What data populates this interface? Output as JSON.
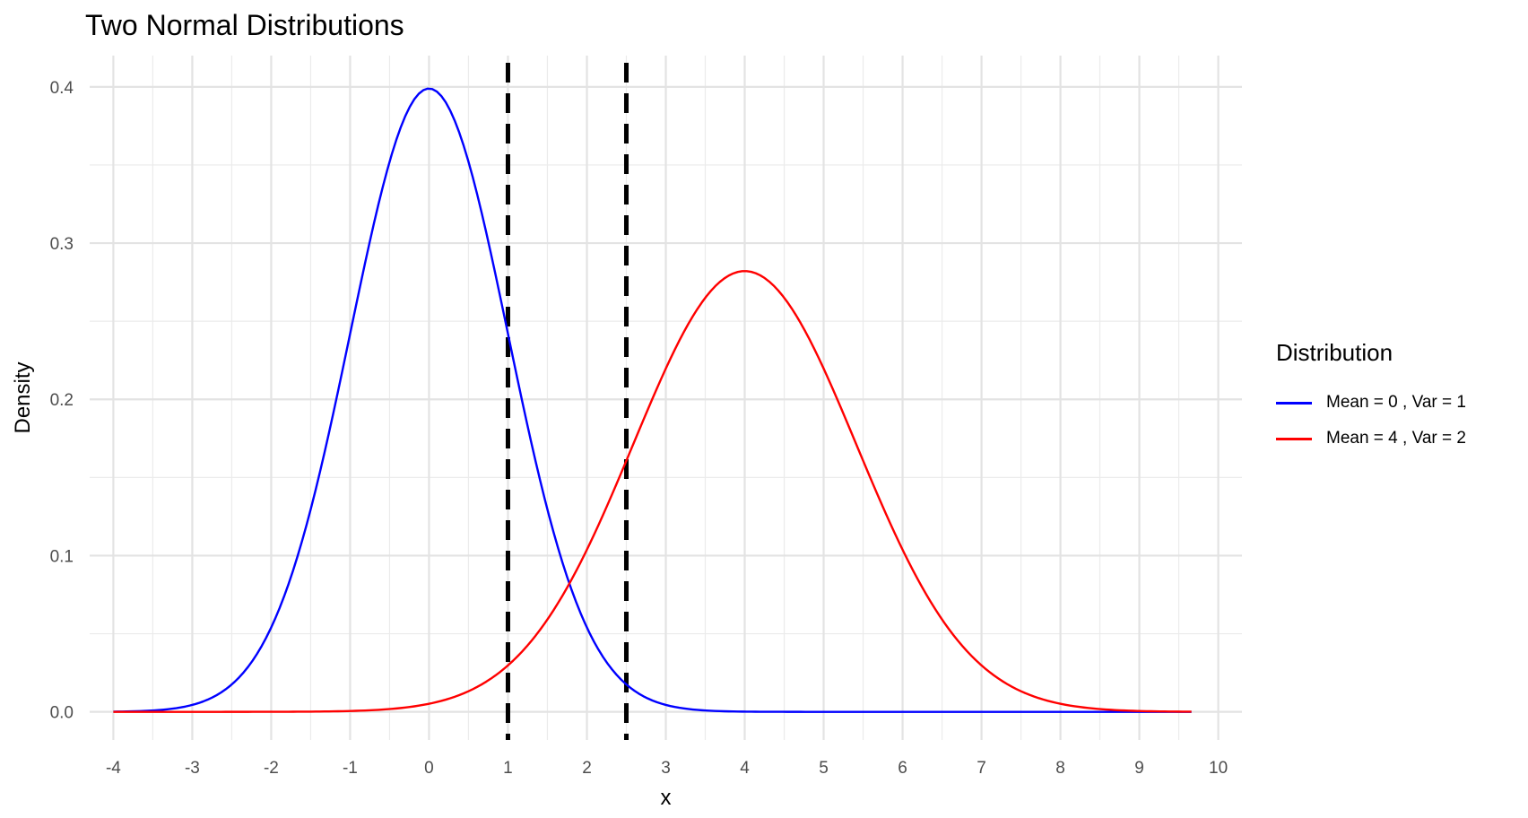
{
  "chart_data": {
    "type": "line",
    "title": "Two Normal Distributions",
    "xlabel": "x",
    "ylabel": "Density",
    "xlim": [
      -4.3,
      10.3
    ],
    "ylim": [
      -0.018,
      0.42
    ],
    "x_ticks": [
      -4,
      -3,
      -2,
      -1,
      0,
      1,
      2,
      3,
      4,
      5,
      6,
      7,
      8,
      9,
      10
    ],
    "x_tick_labels": [
      "-4",
      "-3",
      "-2",
      "-1",
      "0",
      "1",
      "2",
      "3",
      "4",
      "5",
      "6",
      "7",
      "8",
      "9",
      "10"
    ],
    "y_ticks": [
      0.0,
      0.1,
      0.2,
      0.3,
      0.4
    ],
    "y_tick_labels": [
      "0.0",
      "0.1",
      "0.2",
      "0.3",
      "0.4"
    ],
    "grid": true,
    "legend": {
      "title": "Distribution",
      "placement": "right"
    },
    "series": [
      {
        "name": "Mean = 0 , Var = 1",
        "color": "#0000ff",
        "mean": 0,
        "variance": 1,
        "x_range": [
          -4,
          9.66
        ],
        "points": [
          [
            -4,
            0.0001
          ],
          [
            -3,
            0.0044
          ],
          [
            -2.5,
            0.0175
          ],
          [
            -2,
            0.054
          ],
          [
            -1.5,
            0.1295
          ],
          [
            -1,
            0.242
          ],
          [
            -0.5,
            0.3521
          ],
          [
            0,
            0.3989
          ],
          [
            0.5,
            0.3521
          ],
          [
            1,
            0.242
          ],
          [
            1.5,
            0.1295
          ],
          [
            2,
            0.054
          ],
          [
            2.5,
            0.0175
          ],
          [
            3,
            0.0044
          ],
          [
            4,
            0.0001
          ],
          [
            6,
            0.0
          ],
          [
            9.66,
            0.0
          ]
        ]
      },
      {
        "name": "Mean = 4 , Var = 2",
        "color": "#ff0000",
        "mean": 4,
        "variance": 2,
        "x_range": [
          -4,
          9.66
        ],
        "points": [
          [
            -4,
            0.0
          ],
          [
            0,
            0.0052
          ],
          [
            1,
            0.0297
          ],
          [
            2,
            0.1038
          ],
          [
            2.5,
            0.1606
          ],
          [
            3,
            0.2197
          ],
          [
            4,
            0.2821
          ],
          [
            5,
            0.2197
          ],
          [
            6,
            0.1038
          ],
          [
            7,
            0.0297
          ],
          [
            8,
            0.0052
          ],
          [
            9,
            0.0005
          ],
          [
            9.66,
            0.0001
          ]
        ]
      }
    ],
    "vlines": [
      {
        "x": 1,
        "color": "#000000",
        "style": "dashed"
      },
      {
        "x": 2.5,
        "color": "#000000",
        "style": "dashed"
      }
    ]
  }
}
